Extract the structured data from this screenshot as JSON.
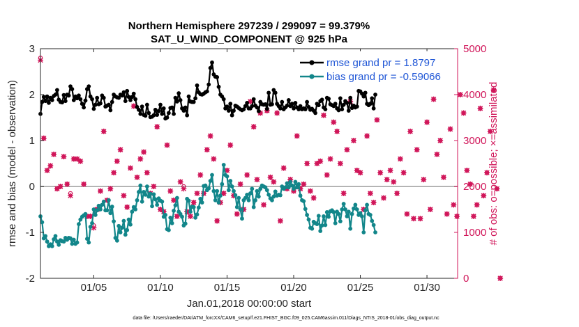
{
  "chart_data": {
    "type": "line",
    "title_line1": "Northern Hemisphere 297239 / 299097 = 99.379%",
    "title_line2": "SAT_U_WIND_COMPONENT @ 925 hPa",
    "xlabel": "Jan.01,2018 00:00:00 start",
    "ylabel_left": "rmse and bias (model - observation)",
    "ylabel_right": "# of obs: o=possible; ×=assimilated",
    "xlim": [
      1.0,
      32.3
    ],
    "ylim_left": [
      -2,
      3
    ],
    "ylim_right": [
      0,
      5000
    ],
    "x_ticks": [
      {
        "value": 5,
        "label": "01/05"
      },
      {
        "value": 10,
        "label": "01/10"
      },
      {
        "value": 15,
        "label": "01/15"
      },
      {
        "value": 20,
        "label": "01/20"
      },
      {
        "value": 25,
        "label": "01/25"
      },
      {
        "value": 30,
        "label": "01/30"
      }
    ],
    "y_ticks_left": [
      "-2",
      "-1",
      "0",
      "1",
      "2",
      "3"
    ],
    "y_ticks_right": [
      "0",
      "1000",
      "2000",
      "3000",
      "4000",
      "5000"
    ],
    "colors": {
      "rmse": "#000000",
      "bias": "#12868a",
      "obs": "#d01458",
      "legend_text": "#1f56d6",
      "zero_line": "#b4b4b4"
    },
    "legend": [
      {
        "label": "rmse grand pr = 1.8797",
        "series": "rmse"
      },
      {
        "label": "bias grand pr = -0.59066",
        "series": "bias"
      }
    ],
    "series": [
      {
        "name": "rmse",
        "axis": "left",
        "x_start": 1.0,
        "x_step": 0.125,
        "values": [
          1.58,
          1.84,
          1.95,
          1.86,
          1.96,
          1.82,
          1.93,
          1.88,
          1.97,
          2.0,
          2.1,
          1.89,
          1.84,
          1.83,
          1.99,
          1.86,
          2.0,
          1.98,
          2.18,
          2.12,
          1.88,
          1.96,
          1.92,
          1.98,
          1.9,
          1.8,
          1.72,
          1.87,
          2.12,
          2.18,
          1.96,
          1.9,
          1.69,
          1.78,
          1.93,
          1.79,
          1.81,
          1.98,
          1.93,
          1.74,
          1.76,
          1.78,
          1.66,
          1.84,
          2.0,
          1.96,
          1.94,
          1.93,
          2.0,
          1.98,
          2.05,
          1.86,
          2.08,
          1.95,
          1.88,
          1.95,
          2.02,
          1.9,
          1.73,
          1.67,
          1.58,
          1.74,
          1.56,
          1.54,
          1.78,
          1.6,
          1.51,
          1.52,
          1.55,
          1.67,
          1.56,
          1.64,
          1.78,
          1.58,
          1.7,
          1.48,
          1.5,
          1.6,
          1.71,
          1.72,
          1.58,
          1.93,
          1.85,
          2.03,
          1.88,
          1.7,
          1.65,
          1.72,
          1.55,
          1.96,
          1.85,
          1.84,
          1.84,
          1.92,
          2.2,
          2.05,
          2.01,
          2.0,
          2.02,
          2.05,
          2.07,
          2.22,
          2.58,
          2.7,
          2.44,
          2.39,
          2.38,
          2.17,
          2.0,
          1.96,
          1.9,
          1.7,
          1.74,
          1.65,
          1.8,
          1.55,
          1.65,
          1.76,
          1.74,
          1.71,
          1.68,
          1.66,
          1.68,
          1.75,
          1.82,
          1.7,
          1.7,
          1.75,
          1.9,
          1.76,
          1.72,
          1.64,
          1.84,
          1.79,
          1.78,
          1.79,
          1.69,
          2.04,
          1.78,
          1.79,
          2.1,
          2.04,
          1.8,
          1.75,
          1.7,
          1.84,
          1.68,
          1.72,
          1.76,
          1.88,
          1.75,
          1.8,
          1.7,
          1.82,
          1.72,
          1.68,
          1.75,
          1.68,
          1.7,
          1.68,
          1.84,
          1.73,
          1.67,
          1.69,
          1.65,
          1.6,
          1.8,
          1.77,
          1.86,
          1.89,
          1.72,
          1.68,
          1.93,
          1.91,
          1.79,
          1.77,
          1.75,
          1.8,
          1.7,
          1.66,
          1.92,
          1.68,
          1.78,
          1.86,
          1.82,
          1.65,
          1.93,
          1.71,
          1.76,
          1.72,
          1.74,
          2.08,
          2.07,
          2.02,
          1.96,
          2.04,
          1.8,
          1.77,
          1.8,
          1.92,
          1.7,
          2.0
        ]
      },
      {
        "name": "bias",
        "axis": "left",
        "x_start": 1.0,
        "x_step": 0.125,
        "values": [
          -0.65,
          -0.78,
          -1.13,
          -1.08,
          -1.2,
          -1.3,
          -1.26,
          -1.3,
          -1.15,
          -1.08,
          -1.2,
          -1.27,
          -1.17,
          -1.19,
          -1.2,
          -1.12,
          -1.16,
          -1.12,
          -1.13,
          -1.25,
          -1.16,
          -1.25,
          -1.22,
          -0.82,
          -0.72,
          -0.66,
          -0.63,
          -0.6,
          -1.14,
          -1.22,
          -0.88,
          -0.8,
          -0.5,
          -0.62,
          -0.52,
          -0.42,
          -0.5,
          -0.4,
          -0.33,
          -0.52,
          -0.52,
          -0.3,
          -0.58,
          -0.44,
          -0.76,
          -1.12,
          -1.18,
          -0.86,
          -1.0,
          -0.9,
          -0.75,
          -1.05,
          -0.95,
          -0.72,
          -0.83,
          -0.55,
          -0.45,
          -0.5,
          -0.3,
          -0.12,
          0.02,
          -0.33,
          -0.12,
          -0.18,
          0.0,
          -0.22,
          -0.16,
          -0.43,
          -0.17,
          -0.28,
          -0.4,
          -0.26,
          -0.31,
          -0.33,
          -0.66,
          -0.62,
          -0.93,
          -0.95,
          -0.68,
          -0.8,
          -0.53,
          -0.41,
          -0.25,
          -0.55,
          -0.6,
          -0.66,
          -0.85,
          -0.81,
          -0.27,
          -0.31,
          -0.55,
          -0.44,
          -0.45,
          -0.68,
          -0.61,
          -0.46,
          -0.27,
          -0.35,
          0.01,
          0.02,
          -0.08,
          -0.04,
          0.12,
          0.25,
          -0.1,
          -0.3,
          -0.1,
          -0.35,
          -0.2,
          0.05,
          0.47,
          0.25,
          0.22,
          -0.08,
          0.12,
          0.0,
          -0.1,
          -0.19,
          -0.45,
          -0.25,
          -0.5,
          -0.7,
          -0.3,
          -0.25,
          -0.18,
          -0.3,
          -0.15,
          -0.05,
          -0.45,
          -0.3,
          -0.1,
          -0.22,
          -0.05,
          0.02,
          0.0,
          -0.02,
          -0.08,
          -0.18,
          -0.26,
          -0.3,
          -0.22,
          -0.11,
          -0.2,
          -0.18,
          -0.19,
          0.0,
          -0.05,
          -0.02,
          0.07,
          -0.02,
          0.1,
          0.02,
          -0.05,
          0.1,
          -0.02,
          0.05,
          -0.2,
          -0.3,
          -0.32,
          -0.49,
          -0.62,
          -0.72,
          -0.9,
          -0.92,
          -0.77,
          -0.8,
          -0.82,
          -0.64,
          -0.97,
          -0.85,
          -0.65,
          -0.84,
          -0.56,
          -0.66,
          -0.54,
          -0.52,
          -0.56,
          -0.8,
          -0.55,
          -0.6,
          -0.76,
          -0.5,
          -0.38,
          -0.5,
          -0.65,
          -0.55,
          -0.92,
          -0.6,
          -0.48,
          -0.4,
          -0.5,
          -0.62,
          -0.58,
          -0.65,
          -1.0,
          -0.52,
          -0.4,
          -0.6,
          -0.62,
          -0.75,
          -0.84,
          -1.0
        ]
      },
      {
        "name": "obs_assimilated",
        "axis": "right",
        "x_start": 1.0,
        "x_step": 0.25,
        "values": [
          4750,
          3050,
          2350,
          2450,
          2700,
          1950,
          2000,
          2650,
          2050,
          1800,
          2600,
          2600,
          2550,
          2050,
          1350,
          1350,
          1100,
          1500,
          1900,
          3200,
          1700,
          1950,
          2300,
          2550,
          2800,
          1800,
          1550,
          2400,
          3750,
          2200,
          2600,
          2750,
          2300,
          1850,
          2000,
          3300,
          1500,
          1450,
          2900,
          1900,
          1700,
          1350,
          2100,
          1950,
          1450,
          1350,
          1650,
          1850,
          2250,
          1850,
          2800,
          3100,
          2600,
          1250,
          1650,
          1850,
          2350,
          2900,
          1800,
          1400,
          2050,
          1500,
          2250,
          3850,
          3300,
          2150,
          3600,
          1600,
          3650,
          2200,
          2100,
          3600,
          1250,
          2400,
          1950,
          2150,
          1900,
          3100,
          1950,
          2050,
          2500,
          1900,
          1750,
          2500,
          2550,
          3550,
          2250,
          2600,
          3400,
          3200,
          2500,
          1850,
          2800,
          3850,
          3000,
          2350,
          2300,
          1500,
          3100,
          1850,
          1650,
          3450,
          2300,
          1750,
          2150,
          2350,
          2100,
          1850,
          2600,
          2300,
          1400,
          3200,
          1300,
          2800,
          1300,
          2150,
          3400,
          1500,
          3900,
          2700,
          3000,
          2200,
          1400,
          3250,
          1600,
          1350,
          4000,
          3600,
          2350,
          2050,
          1350,
          1600,
          3700,
          1800,
          2300,
          3200,
          4100,
          1950,
          0
        ]
      },
      {
        "name": "obs_possible",
        "axis": "right",
        "x_start": 1.0,
        "x_step": 0.25,
        "values": [
          4800,
          3050,
          2350,
          2450,
          2700,
          1950,
          2000,
          2650,
          2050,
          1850,
          2600,
          2600,
          2550,
          2050,
          1350,
          1350,
          1150,
          1500,
          1900,
          3200,
          1700,
          1950,
          2300,
          2550,
          2800,
          1800,
          1550,
          2400,
          3750,
          2200,
          2600,
          2750,
          2300,
          1850,
          2000,
          3300,
          1500,
          1450,
          2900,
          1900,
          1700,
          1350,
          2100,
          2000,
          1450,
          1350,
          1650,
          1850,
          2250,
          1850,
          2800,
          3100,
          2600,
          1250,
          1650,
          1850,
          2350,
          2900,
          1800,
          1400,
          2050,
          1500,
          2250,
          3850,
          3300,
          2150,
          3600,
          1600,
          3650,
          2200,
          2100,
          3600,
          1250,
          2400,
          1950,
          2150,
          1900,
          3100,
          1950,
          2050,
          2500,
          1900,
          1750,
          2500,
          2550,
          3550,
          2250,
          2600,
          3400,
          3200,
          2500,
          1850,
          2800,
          3850,
          3000,
          2350,
          2300,
          1500,
          3100,
          1850,
          1650,
          3450,
          2300,
          1750,
          2150,
          2350,
          2100,
          1850,
          2600,
          2300,
          1400,
          3200,
          1300,
          2800,
          1300,
          2150,
          3400,
          1500,
          3900,
          2700,
          3000,
          2200,
          1400,
          3250,
          1600,
          1350,
          4000,
          3600,
          2350,
          2050,
          1350,
          1600,
          3700,
          1800,
          2300,
          3200,
          4100,
          1950,
          0
        ]
      }
    ],
    "footnote": "data file: /Users/raeder/DAI/ATM_forcXX/CAM6_setup/f.e21.FHIST_BGC.f09_025.CAM6assim.011/Diags_NTrS_2018-01/obs_diag_output.nc"
  }
}
